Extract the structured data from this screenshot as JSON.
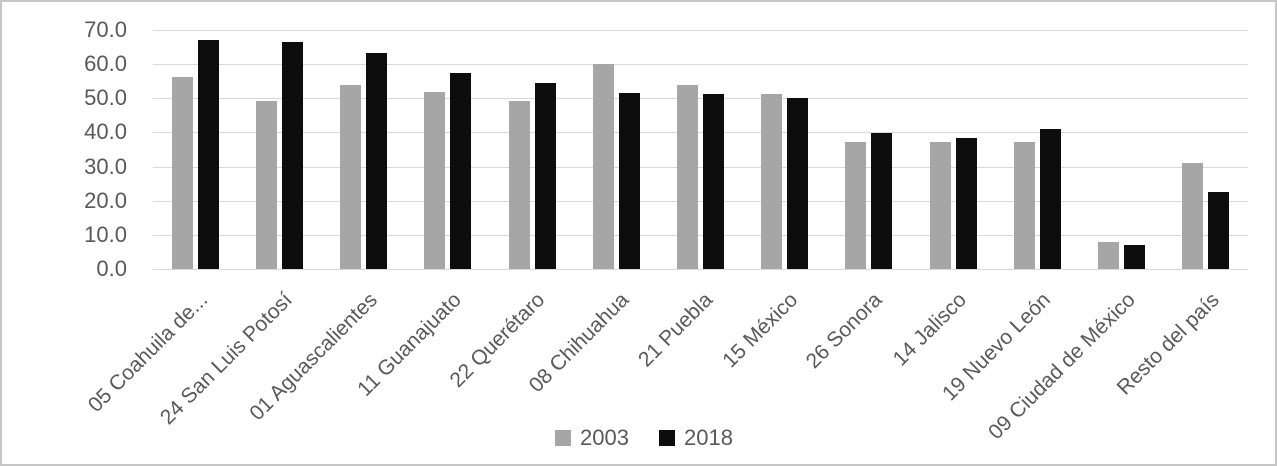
{
  "chart_data": {
    "type": "bar",
    "title": "",
    "xlabel": "",
    "ylabel": "",
    "categories": [
      "05 Coahuila de...",
      "24 San Luis Potosí",
      "01 Aguascalientes",
      "11 Guanajuato",
      "22 Querétaro",
      "08 Chihuahua",
      "21 Puebla",
      "15 México",
      "26 Sonora",
      "14 Jalisco",
      "19 Nuevo León",
      "09 Ciudad de México",
      "Resto del país"
    ],
    "series": [
      {
        "name": "2003",
        "color": "#a6a6a6",
        "values": [
          56.2,
          49.2,
          53.8,
          51.8,
          49.2,
          60.0,
          53.8,
          51.3,
          37.2,
          37.2,
          37.2,
          7.9,
          31.0
        ]
      },
      {
        "name": "2018",
        "color": "#0d0d0d",
        "values": [
          67.2,
          66.5,
          63.2,
          57.5,
          54.5,
          51.6,
          51.3,
          50.0,
          39.8,
          38.4,
          41.0,
          6.9,
          22.6
        ]
      }
    ],
    "ylim": [
      0,
      70
    ],
    "ytick_step": 10,
    "ytick_labels": [
      "0.0",
      "10.0",
      "20.0",
      "30.0",
      "40.0",
      "50.0",
      "60.0",
      "70.0"
    ],
    "grid": true,
    "legend_position": "bottom-center",
    "colors": {
      "gridline": "#d9d9d9",
      "axis_text": "#595959",
      "background": "#ffffff",
      "border": "#c6c6c6"
    }
  }
}
